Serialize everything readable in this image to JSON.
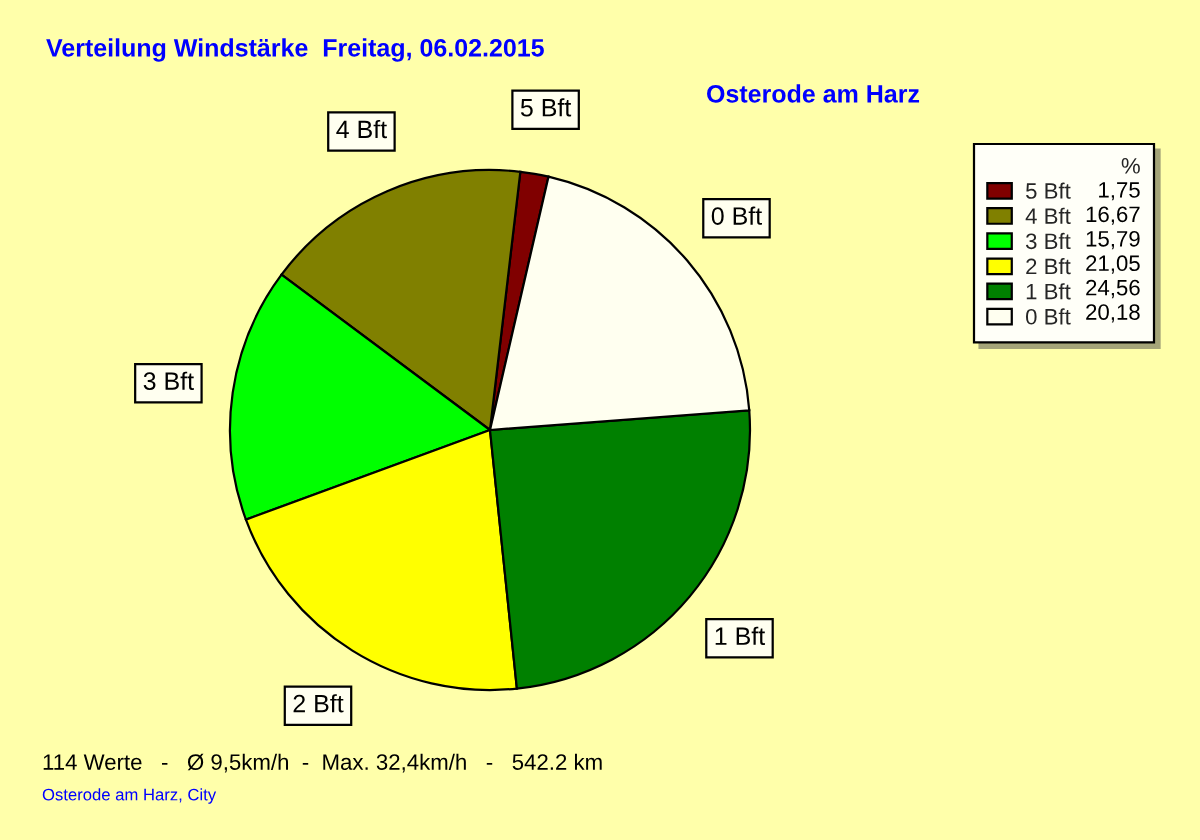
{
  "chart_data": {
    "type": "pie",
    "title": "Verteilung Windstärke  Freitag, 06.02.2015",
    "subtitle": "Osterode am Harz",
    "categories": [
      "5 Bft",
      "4 Bft",
      "3 Bft",
      "2 Bft",
      "1 Bft",
      "0 Bft"
    ],
    "values": [
      1.75,
      16.67,
      15.79,
      21.05,
      24.56,
      20.18
    ],
    "value_labels": [
      "1,75",
      "16,67",
      "15,79",
      "21,05",
      "24,56",
      "20,18"
    ],
    "colors": [
      "#800000",
      "#808000",
      "#00ff00",
      "#ffff00",
      "#008000",
      "#fffff0"
    ],
    "legend_title": "%",
    "legend": "top right",
    "annotations": [
      "114 Werte   -   Ø 9,5km/h  -  Max. 32,4km/h   -   542.2 km",
      "Osterode am Harz, City"
    ]
  }
}
